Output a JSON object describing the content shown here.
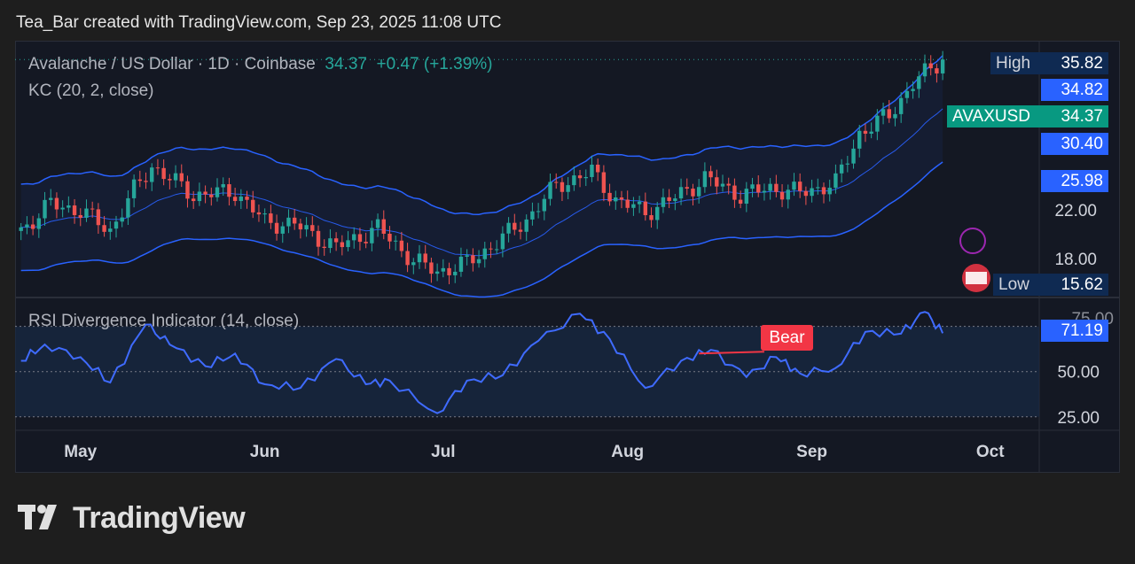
{
  "header": {
    "caption": "Tea_Bar created with TradingView.com, Sep 23, 2025 11:08 UTC"
  },
  "legend": {
    "symbol": "Avalanche / US Dollar · 1D · Coinbase",
    "last": "34.37",
    "change": "+0.47 (+1.39%)",
    "indicator": "KC (20, 2, close)",
    "rsi_indicator": "RSI Divergence Indicator (14, close)"
  },
  "price_tags": {
    "high_label": "High",
    "high_value": "35.82",
    "kc_upper": "34.82",
    "symbol_label": "AVAXUSD",
    "symbol_value": "34.37",
    "kc_mid": "30.40",
    "kc_lower": "25.98",
    "low_label": "Low",
    "low_value": "15.62",
    "rsi_value": "71.19",
    "rsi_hidden": "75.00"
  },
  "bear_label": "Bear",
  "brand": "TradingView",
  "colors": {
    "up": "#26a69a",
    "down": "#ef5350",
    "channel": "#2962ff",
    "rsi": "#3f6bff",
    "bear": "#f23645"
  },
  "chart_data": [
    {
      "type": "candlestick",
      "title": "Avalanche / US Dollar · 1D · Coinbase",
      "x_ticks": [
        "May",
        "Jun",
        "Jul",
        "Aug",
        "Sep",
        "Oct"
      ],
      "y_ticks": [
        18.0,
        22.0
      ],
      "ylim": [
        15.0,
        36.5
      ],
      "overlay": "KC (20, 2, close)",
      "close_points": [
        {
          "date": "2025-04-21",
          "close": 20.3
        },
        {
          "date": "2025-04-26",
          "close": 22.5
        },
        {
          "date": "2025-05-01",
          "close": 21.9
        },
        {
          "date": "2025-05-06",
          "close": 20.3
        },
        {
          "date": "2025-05-10",
          "close": 23.6
        },
        {
          "date": "2025-05-13",
          "close": 25.6
        },
        {
          "date": "2025-05-20",
          "close": 23.2
        },
        {
          "date": "2025-05-27",
          "close": 23.5
        },
        {
          "date": "2025-06-01",
          "close": 21.0
        },
        {
          "date": "2025-06-06",
          "close": 20.8
        },
        {
          "date": "2025-06-13",
          "close": 18.9
        },
        {
          "date": "2025-06-20",
          "close": 20.5
        },
        {
          "date": "2025-06-26",
          "close": 17.8
        },
        {
          "date": "2025-06-30",
          "close": 16.9
        },
        {
          "date": "2025-07-05",
          "close": 17.6
        },
        {
          "date": "2025-07-10",
          "close": 19.3
        },
        {
          "date": "2025-07-15",
          "close": 21.2
        },
        {
          "date": "2025-07-20",
          "close": 24.0
        },
        {
          "date": "2025-07-26",
          "close": 25.1
        },
        {
          "date": "2025-07-30",
          "close": 22.8
        },
        {
          "date": "2025-08-04",
          "close": 21.8
        },
        {
          "date": "2025-08-09",
          "close": 23.0
        },
        {
          "date": "2025-08-14",
          "close": 24.6
        },
        {
          "date": "2025-08-20",
          "close": 23.2
        },
        {
          "date": "2025-08-25",
          "close": 23.8
        },
        {
          "date": "2025-08-30",
          "close": 23.4
        },
        {
          "date": "2025-09-05",
          "close": 24.2
        },
        {
          "date": "2025-09-09",
          "close": 28.3
        },
        {
          "date": "2025-09-14",
          "close": 29.8
        },
        {
          "date": "2025-09-18",
          "close": 32.4
        },
        {
          "date": "2025-09-23",
          "close": 34.37
        }
      ],
      "keltner_channel": {
        "upper_last": 34.82,
        "middle_last": 30.4,
        "lower_last": 25.98
      },
      "high": 35.82,
      "low": 15.62
    },
    {
      "type": "line",
      "title": "RSI Divergence Indicator (14, close)",
      "y_ticks": [
        25.0,
        50.0,
        75.0
      ],
      "ylim": [
        20,
        90
      ],
      "series": [
        {
          "points": [
            {
              "date": "2025-04-21",
              "value": 56
            },
            {
              "date": "2025-04-25",
              "value": 65
            },
            {
              "date": "2025-05-01",
              "value": 58
            },
            {
              "date": "2025-05-06",
              "value": 44
            },
            {
              "date": "2025-05-12",
              "value": 76
            },
            {
              "date": "2025-05-16",
              "value": 65
            },
            {
              "date": "2025-05-22",
              "value": 53
            },
            {
              "date": "2025-05-27",
              "value": 60
            },
            {
              "date": "2025-06-01",
              "value": 43
            },
            {
              "date": "2025-06-07",
              "value": 41
            },
            {
              "date": "2025-06-13",
              "value": 57
            },
            {
              "date": "2025-06-18",
              "value": 43
            },
            {
              "date": "2025-06-22",
              "value": 45
            },
            {
              "date": "2025-06-30",
              "value": 27
            },
            {
              "date": "2025-07-05",
              "value": 45
            },
            {
              "date": "2025-07-11",
              "value": 48
            },
            {
              "date": "2025-07-17",
              "value": 67
            },
            {
              "date": "2025-07-24",
              "value": 82
            },
            {
              "date": "2025-07-29",
              "value": 68
            },
            {
              "date": "2025-08-04",
              "value": 41
            },
            {
              "date": "2025-08-10",
              "value": 56
            },
            {
              "date": "2025-08-15",
              "value": 62
            },
            {
              "date": "2025-08-21",
              "value": 47
            },
            {
              "date": "2025-08-26",
              "value": 58
            },
            {
              "date": "2025-08-30",
              "value": 49
            },
            {
              "date": "2025-09-05",
              "value": 52
            },
            {
              "date": "2025-09-10",
              "value": 72
            },
            {
              "date": "2025-09-16",
              "value": 71
            },
            {
              "date": "2025-09-20",
              "value": 83
            },
            {
              "date": "2025-09-23",
              "value": 71.19
            }
          ]
        }
      ],
      "annotations": [
        {
          "text": "Bear",
          "date": "2025-08-20"
        }
      ]
    }
  ]
}
